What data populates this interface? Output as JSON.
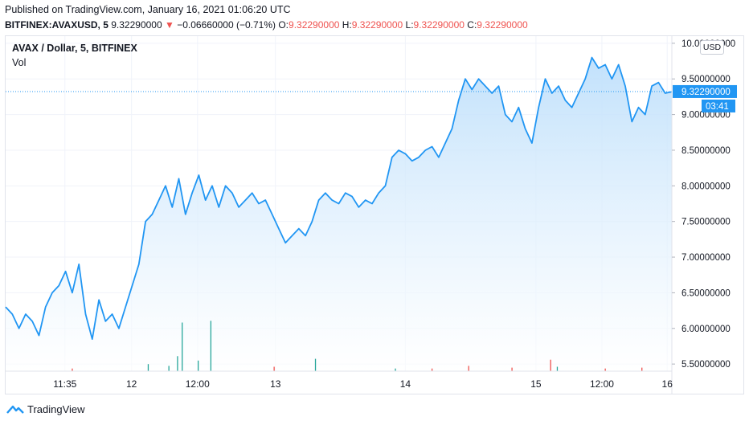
{
  "header": {
    "published": "Published on TradingView.com, January 16, 2021 01:06:20 UTC",
    "symbol": "BITFINEX:AVAXUSD, 5",
    "last": "9.32290000",
    "change": "−0.06660000 (−0.71%)",
    "o_label": "O:",
    "o_value": "9.32290000",
    "h_label": "H:",
    "h_value": "9.32290000",
    "l_label": "L:",
    "l_value": "9.32290000",
    "c_label": "C:",
    "c_value": "9.32290000"
  },
  "legend": {
    "title": "AVAX / Dollar, 5, BITFINEX",
    "vol": "Vol"
  },
  "price_scale": {
    "currency": "USD",
    "last_label": "9.32290000",
    "countdown": "03:41"
  },
  "footer": {
    "brand": "TradingView"
  },
  "colors": {
    "line": "#2196f3",
    "fill_top": "#bbdefb",
    "fill_bottom": "#ffffff",
    "down": "#ef5350",
    "vol_up": "#26a69a",
    "vol_down": "#ef5350",
    "grid": "#f0f3fa"
  },
  "chart_data": {
    "type": "area",
    "title": "AVAX / Dollar, 5, BITFINEX",
    "ylim": [
      5.4,
      10.1
    ],
    "yticks": [
      "10.00000000",
      "9.50000000",
      "9.00000000",
      "8.50000000",
      "8.00000000",
      "7.50000000",
      "7.00000000",
      "6.50000000",
      "6.00000000",
      "5.50000000"
    ],
    "ytick_values": [
      10.0,
      9.5,
      9.0,
      8.5,
      8.0,
      7.5,
      7.0,
      6.5,
      6.0,
      5.5
    ],
    "xlim": [
      0,
      100
    ],
    "xticks": [
      {
        "label": "11:35",
        "x": 8.9
      },
      {
        "label": "12",
        "x": 18.9
      },
      {
        "label": "12:00",
        "x": 28.8
      },
      {
        "label": "13",
        "x": 40.5
      },
      {
        "label": "14",
        "x": 60.0
      },
      {
        "label": "15",
        "x": 79.6
      },
      {
        "label": "12:00",
        "x": 89.5
      },
      {
        "label": "16",
        "x": 99.3
      }
    ],
    "last_price": 9.3229,
    "series": [
      {
        "x": [
          0,
          1,
          2,
          3,
          4,
          5,
          6,
          7,
          8,
          9,
          10,
          11,
          12,
          13,
          14,
          15,
          16,
          17,
          18,
          19,
          20,
          21,
          22,
          23,
          24,
          25,
          26,
          27,
          28,
          29,
          30,
          31,
          32,
          33,
          34,
          35,
          36,
          37,
          38,
          39,
          40,
          41,
          42,
          43,
          44,
          45,
          46,
          47,
          48,
          49,
          50,
          51,
          52,
          53,
          54,
          55,
          56,
          57,
          58,
          59,
          60,
          61,
          62,
          63,
          64,
          65,
          66,
          67,
          68,
          69,
          70,
          71,
          72,
          73,
          74,
          75,
          76,
          77,
          78,
          79,
          80,
          81,
          82,
          83,
          84,
          85,
          86,
          87,
          88,
          89,
          90,
          91,
          92,
          93,
          94,
          95,
          96,
          97,
          98,
          99,
          100
        ],
        "values": [
          6.3,
          6.2,
          6.0,
          6.2,
          6.1,
          5.9,
          6.3,
          6.5,
          6.6,
          6.8,
          6.5,
          6.9,
          6.2,
          5.85,
          6.4,
          6.1,
          6.2,
          6.0,
          6.3,
          6.6,
          6.9,
          7.5,
          7.6,
          7.8,
          8.0,
          7.7,
          8.1,
          7.6,
          7.9,
          8.15,
          7.8,
          8.0,
          7.7,
          8.0,
          7.9,
          7.7,
          7.8,
          7.9,
          7.75,
          7.8,
          7.6,
          7.4,
          7.2,
          7.3,
          7.4,
          7.3,
          7.5,
          7.8,
          7.9,
          7.8,
          7.75,
          7.9,
          7.85,
          7.7,
          7.8,
          7.75,
          7.9,
          8.0,
          8.4,
          8.5,
          8.45,
          8.35,
          8.4,
          8.5,
          8.55,
          8.4,
          8.6,
          8.8,
          9.2,
          9.5,
          9.35,
          9.5,
          9.4,
          9.3,
          9.4,
          9.0,
          8.9,
          9.1,
          8.8,
          8.6,
          9.1,
          9.5,
          9.3,
          9.4,
          9.2,
          9.1,
          9.3,
          9.5,
          9.8,
          9.65,
          9.7,
          9.5,
          9.7,
          9.4,
          8.9,
          9.1,
          9.0,
          9.4,
          9.45,
          9.3,
          9.32
        ]
      }
    ],
    "volume": {
      "ylim": [
        0,
        1
      ],
      "bars": [
        {
          "x": 26.5,
          "v": 0.55,
          "up": true
        },
        {
          "x": 30.8,
          "v": 0.57,
          "up": true
        },
        {
          "x": 25.8,
          "v": 0.17,
          "up": true
        },
        {
          "x": 28.9,
          "v": 0.12,
          "up": true
        },
        {
          "x": 46.5,
          "v": 0.14,
          "up": true
        },
        {
          "x": 81.8,
          "v": 0.13,
          "up": false
        },
        {
          "x": 21.4,
          "v": 0.08,
          "up": true
        },
        {
          "x": 24.5,
          "v": 0.06,
          "up": true
        },
        {
          "x": 40.3,
          "v": 0.05,
          "up": false
        },
        {
          "x": 69.5,
          "v": 0.06,
          "up": false
        },
        {
          "x": 76.0,
          "v": 0.04,
          "up": false
        },
        {
          "x": 82.8,
          "v": 0.05,
          "up": true
        },
        {
          "x": 90.0,
          "v": 0.03,
          "up": false
        },
        {
          "x": 95.5,
          "v": 0.04,
          "up": false
        },
        {
          "x": 10.0,
          "v": 0.03,
          "up": false
        },
        {
          "x": 58.5,
          "v": 0.03,
          "up": true
        },
        {
          "x": 64.0,
          "v": 0.03,
          "up": false
        }
      ]
    }
  }
}
